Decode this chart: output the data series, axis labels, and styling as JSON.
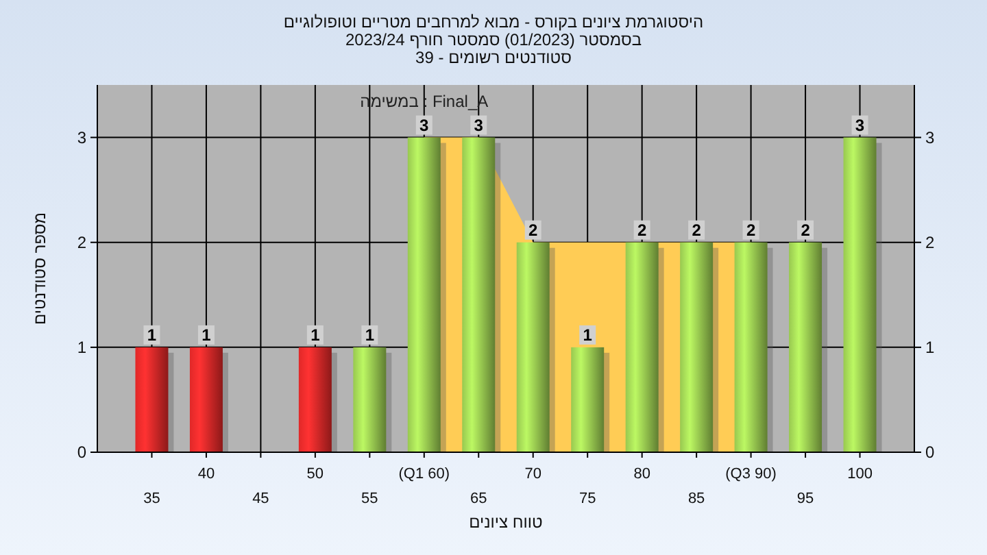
{
  "chart_data": {
    "type": "bar",
    "title": "היסטוגרמת ציונים בקורס - מבוא למרחבים מטריים וטופולוגיים",
    "subtitle": "בסמסטר  (01/2023)  סמסטר חורף 2023/24\nסטודנטים רשומים - 39",
    "xlabel": "טווח ציונים",
    "ylabel": "מספר סטודנטים",
    "categories": [
      "35",
      "40",
      "45",
      "50",
      "55",
      "(Q1 60)",
      "65",
      "70",
      "75",
      "80",
      "85",
      "(Q3 90)",
      "95",
      "100"
    ],
    "series": [
      {
        "type": "area",
        "color": "#ffcc55",
        "x": [
          "(Q1 60)",
          "65",
          "70",
          "75",
          "80",
          "85",
          "(Q3 90)"
        ],
        "values": [
          3,
          3,
          2,
          2,
          2,
          2,
          2
        ]
      },
      {
        "name": "במשימה : Final_A",
        "colors": [
          "#e02828",
          "#e02828",
          "#e02828",
          "#e02828",
          "#98c850",
          "#98c850",
          "#98c850",
          "#98c850",
          "#98c850",
          "#98c850",
          "#98c850",
          "#98c850",
          "#98c850",
          "#98c850"
        ],
        "values": [
          1,
          1,
          0,
          1,
          1,
          3,
          3,
          2,
          1,
          2,
          2,
          2,
          2,
          3
        ],
        "value_labels": [
          "1",
          "1",
          null,
          "1",
          "1",
          "3",
          "3",
          "2",
          "1",
          "2",
          "2",
          "2",
          "2",
          "3"
        ]
      }
    ],
    "ylim": [
      0,
      3.5
    ],
    "yticks": [
      0,
      1,
      2,
      3
    ],
    "y2lim": [
      0,
      3.5
    ],
    "y2ticks": [
      0,
      1,
      2,
      3
    ],
    "grid": true,
    "legend": "top"
  }
}
